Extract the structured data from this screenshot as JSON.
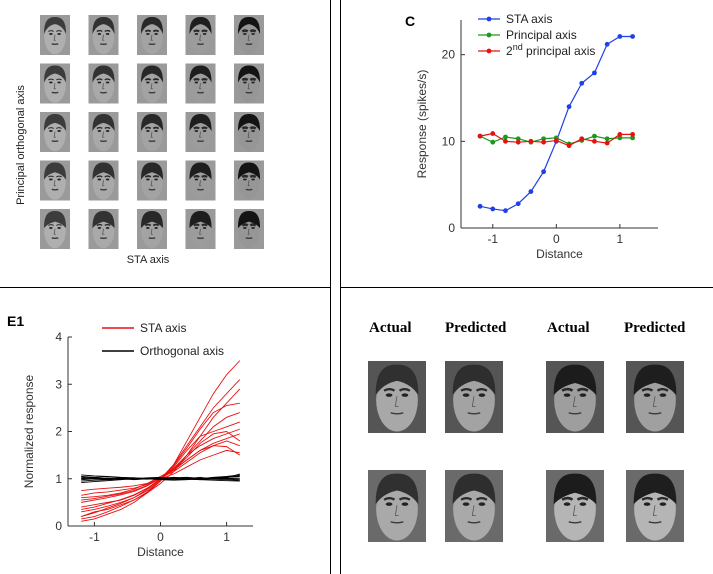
{
  "panel_a": {
    "ylabel": "Principal orthogonal axis",
    "xlabel": "STA axis",
    "grid_rows": 5,
    "grid_cols": 5
  },
  "chart_data": [
    {
      "type": "line",
      "panel_label": "C",
      "title": "",
      "xlabel": "Distance",
      "ylabel": "Response (spikes/s)",
      "xlim": [
        -1.5,
        1.6
      ],
      "ylim": [
        0,
        24
      ],
      "xticks": [
        -1,
        0,
        1
      ],
      "xtick_labels": [
        "-1",
        "0",
        "1"
      ],
      "yticks": [
        0,
        10,
        20
      ],
      "ytick_labels": [
        "0",
        "10",
        "20"
      ],
      "legend_placement": "top-left",
      "legend": [
        {
          "name": "STA axis",
          "color": "#1f3fe8"
        },
        {
          "name": "Principal axis",
          "color": "#1a9a1a"
        },
        {
          "name": "principal axis",
          "prefix": "2",
          "superscript": "nd",
          "color": "#e81010"
        }
      ],
      "x": [
        -1.2,
        -1.0,
        -0.8,
        -0.6,
        -0.4,
        -0.2,
        0.0,
        0.2,
        0.4,
        0.6,
        0.8,
        1.0,
        1.2
      ],
      "series": [
        {
          "name": "STA axis",
          "color": "#1f3fe8",
          "values": [
            2.5,
            2.2,
            2.0,
            2.8,
            4.2,
            6.5,
            10.0,
            14.0,
            16.7,
            17.9,
            21.2,
            22.1,
            22.1
          ]
        },
        {
          "name": "Principal axis",
          "color": "#1a9a1a",
          "values": [
            10.6,
            9.9,
            10.5,
            10.3,
            9.9,
            10.3,
            10.4,
            9.7,
            10.1,
            10.6,
            10.3,
            10.4,
            10.4
          ]
        },
        {
          "name": "2nd principal axis",
          "color": "#e81010",
          "values": [
            10.6,
            10.9,
            10.0,
            9.9,
            10.0,
            9.9,
            10.1,
            9.5,
            10.3,
            10.0,
            9.8,
            10.8,
            10.8
          ]
        }
      ]
    },
    {
      "type": "line",
      "panel_label": "E1",
      "title": "",
      "xlabel": "Distance",
      "ylabel": "Normalized response",
      "xlim": [
        -1.4,
        1.4
      ],
      "ylim": [
        0,
        4
      ],
      "xticks": [
        -1,
        0,
        1
      ],
      "xtick_labels": [
        "-1",
        "0",
        "1"
      ],
      "yticks": [
        0,
        1,
        2,
        3,
        4
      ],
      "ytick_labels": [
        "0",
        "1",
        "2",
        "3",
        "4"
      ],
      "legend_placement": "top-right",
      "legend": [
        {
          "name": "STA axis",
          "color": "#e81010"
        },
        {
          "name": "Orthogonal axis",
          "color": "#000000"
        }
      ],
      "x": [
        -1.2,
        -1.0,
        -0.8,
        -0.6,
        -0.4,
        -0.2,
        0.0,
        0.2,
        0.4,
        0.6,
        0.8,
        1.0,
        1.2
      ],
      "series": [
        {
          "name": "STA axis",
          "color": "#e81010",
          "values": [
            0.2,
            0.3,
            0.35,
            0.45,
            0.55,
            0.7,
            0.95,
            1.3,
            1.8,
            2.3,
            2.8,
            3.2,
            3.5
          ]
        },
        {
          "name": "STA axis",
          "color": "#e81010",
          "values": [
            0.4,
            0.45,
            0.5,
            0.55,
            0.65,
            0.8,
            1.0,
            1.2,
            1.5,
            1.8,
            2.1,
            2.3,
            2.4
          ]
        },
        {
          "name": "STA axis",
          "color": "#e81010",
          "values": [
            0.6,
            0.62,
            0.65,
            0.7,
            0.78,
            0.9,
            1.05,
            1.2,
            1.4,
            1.6,
            1.75,
            1.85,
            1.95
          ]
        },
        {
          "name": "STA axis",
          "color": "#e81010",
          "values": [
            0.1,
            0.15,
            0.25,
            0.35,
            0.5,
            0.7,
            0.9,
            1.15,
            1.5,
            1.9,
            2.3,
            2.6,
            2.9
          ]
        },
        {
          "name": "STA axis",
          "color": "#e81010",
          "values": [
            0.3,
            0.35,
            0.42,
            0.5,
            0.6,
            0.75,
            0.98,
            1.25,
            1.6,
            1.9,
            2.0,
            2.1,
            2.2
          ]
        },
        {
          "name": "STA axis",
          "color": "#e81010",
          "values": [
            0.75,
            0.78,
            0.8,
            0.82,
            0.85,
            0.9,
            1.0,
            1.1,
            1.25,
            1.4,
            1.5,
            1.6,
            1.55
          ]
        },
        {
          "name": "STA axis",
          "color": "#e81010",
          "values": [
            0.5,
            0.55,
            0.6,
            0.66,
            0.73,
            0.85,
            1.02,
            1.2,
            1.45,
            1.75,
            1.95,
            2.0,
            1.8
          ]
        },
        {
          "name": "STA axis",
          "color": "#e81010",
          "values": [
            0.2,
            0.28,
            0.38,
            0.48,
            0.6,
            0.78,
            1.0,
            1.3,
            1.7,
            2.1,
            2.5,
            2.8,
            3.1
          ]
        },
        {
          "name": "STA axis",
          "color": "#e81010",
          "values": [
            0.65,
            0.7,
            0.72,
            0.76,
            0.8,
            0.88,
            1.02,
            1.15,
            1.35,
            1.55,
            1.7,
            1.8,
            1.7
          ]
        },
        {
          "name": "STA axis",
          "color": "#e81010",
          "values": [
            0.35,
            0.4,
            0.48,
            0.56,
            0.66,
            0.8,
            1.0,
            1.22,
            1.5,
            1.7,
            1.85,
            1.95,
            2.05
          ]
        },
        {
          "name": "STA axis",
          "color": "#e81010",
          "values": [
            0.15,
            0.2,
            0.3,
            0.42,
            0.55,
            0.72,
            0.96,
            1.28,
            1.65,
            2.05,
            2.4,
            2.55,
            2.6
          ]
        },
        {
          "name": "STA axis",
          "color": "#e81010",
          "values": [
            0.55,
            0.58,
            0.63,
            0.68,
            0.75,
            0.86,
            1.01,
            1.18,
            1.4,
            1.6,
            1.7,
            1.68,
            1.5
          ]
        },
        {
          "name": "Orthogonal axis",
          "color": "#000000",
          "values": [
            1.0,
            1.02,
            0.98,
            1.01,
            0.99,
            1.0,
            1.02,
            0.98,
            1.0,
            1.03,
            0.99,
            1.01,
            1.0
          ]
        },
        {
          "name": "Orthogonal axis",
          "color": "#000000",
          "values": [
            1.05,
            1.03,
            1.04,
            1.02,
            1.0,
            1.01,
            0.99,
            1.0,
            1.02,
            1.0,
            1.03,
            1.05,
            1.08
          ]
        },
        {
          "name": "Orthogonal axis",
          "color": "#000000",
          "values": [
            0.95,
            0.97,
            0.98,
            0.99,
            1.0,
            0.99,
            1.01,
            1.02,
            1.0,
            0.98,
            0.97,
            0.96,
            0.95
          ]
        },
        {
          "name": "Orthogonal axis",
          "color": "#000000",
          "values": [
            1.08,
            1.06,
            1.05,
            1.03,
            1.02,
            1.0,
            0.98,
            0.97,
            0.98,
            1.0,
            1.02,
            1.04,
            1.06
          ]
        },
        {
          "name": "Orthogonal axis",
          "color": "#000000",
          "values": [
            0.92,
            0.94,
            0.96,
            0.98,
            1.0,
            1.01,
            1.0,
            1.02,
            1.03,
            1.01,
            0.99,
            0.98,
            0.97
          ]
        },
        {
          "name": "Orthogonal axis",
          "color": "#000000",
          "values": [
            1.02,
            1.0,
            1.01,
            1.0,
            0.98,
            1.0,
            1.01,
            1.03,
            1.01,
            0.99,
            1.0,
            1.02,
            1.1
          ]
        },
        {
          "name": "Orthogonal axis",
          "color": "#000000",
          "values": [
            0.98,
            1.0,
            0.99,
            1.01,
            1.02,
            1.0,
            0.99,
            0.98,
            0.99,
            1.01,
            1.02,
            1.0,
            0.99
          ]
        },
        {
          "name": "Orthogonal axis",
          "color": "#000000",
          "values": [
            1.04,
            1.02,
            1.0,
            0.99,
            1.0,
            1.02,
            1.03,
            1.01,
            0.99,
            0.98,
            1.0,
            1.03,
            1.04
          ]
        }
      ]
    }
  ],
  "panel_d": {
    "titles": [
      "Actual",
      "Predicted",
      "Actual",
      "Predicted"
    ]
  }
}
